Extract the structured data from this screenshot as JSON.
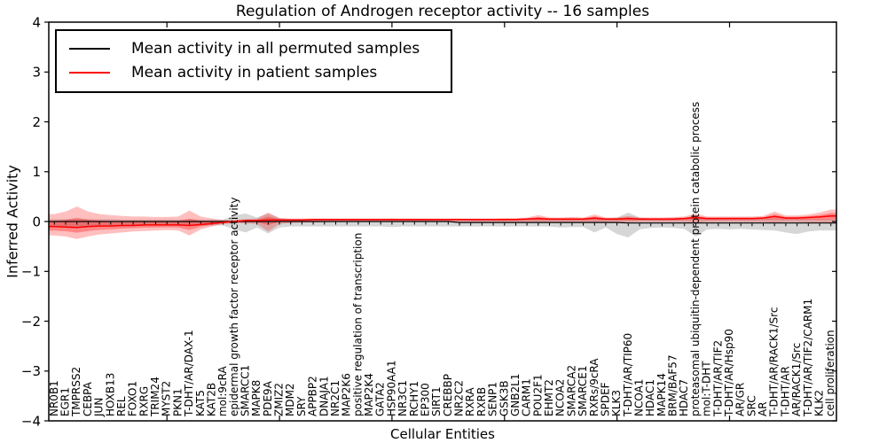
{
  "title": "Regulation of Androgen receptor activity -- 16 samples",
  "axes": {
    "xlabel": "Cellular Entities",
    "ylabel": "Inferred Activity",
    "ylim": [
      -4,
      4
    ],
    "ytick_values": [
      4,
      3,
      2,
      1,
      0,
      -1,
      -2,
      -3,
      -4
    ],
    "ytick_labels": [
      "4",
      "3",
      "2",
      "1",
      "0",
      "−1",
      "−2",
      "−3",
      "−4"
    ]
  },
  "legend": {
    "items": [
      {
        "label": "Mean activity in all permuted samples",
        "color": "#000000"
      },
      {
        "label": "Mean activity in patient samples",
        "color": "#ff0000"
      }
    ]
  },
  "chart_data": {
    "type": "line",
    "title": "Regulation of Androgen receptor activity -- 16 samples",
    "xlabel": "Cellular Entities",
    "ylabel": "Inferred Activity",
    "ylim": [
      -4,
      4
    ],
    "grid": false,
    "legend_position": "upper left",
    "categories": [
      "NR0B1",
      "EGR1",
      "TMPRSS2",
      "CEBPA",
      "JUN",
      "HOXB13",
      "REL",
      "FOXO1",
      "RXRG",
      "TRIM24",
      "MYST2",
      "PKN1",
      "T-DHT/AR/DAX-1",
      "KAT5",
      "KAT2B",
      "mol:9cRA",
      "epidermal growth factor receptor activity",
      "SMARCC1",
      "MAPK8",
      "PDE9A",
      "ZMIZ2",
      "MDM2",
      "SRY",
      "APPBP2",
      "DNAJA1",
      "NR2C1",
      "MAP2K6",
      "positive regulation of transcription",
      "MAP2K4",
      "GATA2",
      "HSP90AA1",
      "NR3C1",
      "RCHY1",
      "EP300",
      "SIRT1",
      "CREBBP",
      "NR2C2",
      "RXRA",
      "RXRB",
      "SENP1",
      "GSK3B",
      "GNB2L1",
      "CARM1",
      "POU2F1",
      "EHMT2",
      "NCOA2",
      "SMARCA2",
      "SMARCE1",
      "RXRs/9cRA",
      "SPDEF",
      "KLK3",
      "T-DHT/AR/TIP60",
      "NCOA1",
      "HDAC1",
      "MAPK14",
      "BRM/BAF57",
      "HDAC7",
      "proteasomal ubiquitin-dependent protein catabolic process",
      "mol:T-DHT",
      "T-DHT/AR/TIF2",
      "T-DHT/AR/Hsp90",
      "AR/GR",
      "SRC",
      "AR",
      "T-DHT/AR/RACK1/Src",
      "T-DHT/AR",
      "AR/RACK1/Src",
      "T-DHT/AR/TIF2/CARM1",
      "KLK2",
      "cell proliferation"
    ],
    "series": [
      {
        "name": "Mean activity in all permuted samples",
        "color": "#000000",
        "values": [
          0,
          0,
          0,
          0,
          0,
          0,
          0,
          0,
          0,
          0,
          0,
          0,
          0,
          0,
          0,
          0,
          0,
          0,
          0,
          0,
          0,
          0,
          0,
          0,
          0,
          0,
          0,
          0,
          0,
          0,
          0,
          0,
          0,
          0,
          0,
          0,
          -0.02,
          -0.02,
          -0.02,
          -0.02,
          -0.02,
          -0.02,
          -0.02,
          -0.02,
          -0.02,
          -0.02,
          -0.02,
          -0.02,
          -0.02,
          -0.02,
          -0.02,
          -0.03,
          -0.03,
          -0.03,
          -0.03,
          -0.03,
          -0.03,
          -0.03,
          -0.03,
          -0.03,
          -0.03,
          -0.03,
          -0.03,
          -0.03,
          -0.03,
          -0.03,
          -0.03,
          -0.03,
          -0.03,
          -0.03
        ]
      },
      {
        "name": "Mean activity in patient samples",
        "color": "#ff0000",
        "values": [
          -0.1,
          -0.11,
          -0.12,
          -0.1,
          -0.09,
          -0.09,
          -0.08,
          -0.08,
          -0.07,
          -0.07,
          -0.07,
          -0.07,
          -0.08,
          -0.06,
          -0.04,
          -0.02,
          0.0,
          0.02,
          0.02,
          0.03,
          0.03,
          0.03,
          0.03,
          0.04,
          0.04,
          0.04,
          0.04,
          0.04,
          0.04,
          0.04,
          0.04,
          0.04,
          0.04,
          0.04,
          0.04,
          0.04,
          0.04,
          0.04,
          0.04,
          0.04,
          0.04,
          0.04,
          0.05,
          0.06,
          0.05,
          0.05,
          0.05,
          0.05,
          0.07,
          0.05,
          0.05,
          0.06,
          0.05,
          0.05,
          0.05,
          0.05,
          0.06,
          0.08,
          0.06,
          0.06,
          0.06,
          0.06,
          0.06,
          0.07,
          0.1,
          0.07,
          0.07,
          0.08,
          0.09,
          0.11
        ]
      }
    ],
    "bands": [
      {
        "name": "permuted-samples-range",
        "color": "rgba(0,0,0,0.16)",
        "upper": [
          0.05,
          0.05,
          0.06,
          0.05,
          0.05,
          0.05,
          0.04,
          0.04,
          0.04,
          0.04,
          0.04,
          0.04,
          0.05,
          0.04,
          0.04,
          0.04,
          0.12,
          0.16,
          0.08,
          0.16,
          0.07,
          0.05,
          0.05,
          0.05,
          0.05,
          0.05,
          0.05,
          0.05,
          0.05,
          0.05,
          0.06,
          0.05,
          0.05,
          0.05,
          0.05,
          0.05,
          0.05,
          0.05,
          0.05,
          0.05,
          0.05,
          0.05,
          0.05,
          0.05,
          0.05,
          0.05,
          0.06,
          0.06,
          0.07,
          0.06,
          0.08,
          0.18,
          0.08,
          0.06,
          0.06,
          0.06,
          0.07,
          0.1,
          0.06,
          0.05,
          0.05,
          0.05,
          0.05,
          0.05,
          0.06,
          0.05,
          0.05,
          0.05,
          0.05,
          0.05
        ],
        "lower": [
          -0.1,
          -0.1,
          -0.12,
          -0.1,
          -0.09,
          -0.08,
          -0.08,
          -0.08,
          -0.08,
          -0.08,
          -0.08,
          -0.08,
          -0.09,
          -0.08,
          -0.08,
          -0.08,
          -0.16,
          -0.22,
          -0.12,
          -0.24,
          -0.12,
          -0.1,
          -0.1,
          -0.1,
          -0.1,
          -0.1,
          -0.1,
          -0.1,
          -0.1,
          -0.1,
          -0.11,
          -0.1,
          -0.1,
          -0.1,
          -0.1,
          -0.1,
          -0.1,
          -0.1,
          -0.1,
          -0.1,
          -0.1,
          -0.1,
          -0.1,
          -0.1,
          -0.1,
          -0.12,
          -0.11,
          -0.11,
          -0.22,
          -0.12,
          -0.25,
          -0.32,
          -0.16,
          -0.13,
          -0.12,
          -0.13,
          -0.15,
          -0.3,
          -0.16,
          -0.15,
          -0.16,
          -0.15,
          -0.16,
          -0.17,
          -0.18,
          -0.22,
          -0.25,
          -0.2,
          -0.18,
          -0.18
        ]
      },
      {
        "name": "patient-samples-range",
        "color": "rgba(255,0,0,0.25)",
        "upper": [
          0.15,
          0.2,
          0.3,
          0.2,
          0.15,
          0.13,
          0.11,
          0.1,
          0.1,
          0.09,
          0.09,
          0.1,
          0.22,
          0.1,
          0.06,
          0.03,
          0.03,
          0.05,
          0.06,
          0.18,
          0.07,
          0.06,
          0.06,
          0.06,
          0.06,
          0.06,
          0.06,
          0.06,
          0.06,
          0.06,
          0.06,
          0.06,
          0.06,
          0.06,
          0.06,
          0.06,
          0.06,
          0.06,
          0.06,
          0.06,
          0.07,
          0.07,
          0.08,
          0.13,
          0.08,
          0.08,
          0.09,
          0.08,
          0.14,
          0.08,
          0.08,
          0.11,
          0.08,
          0.08,
          0.08,
          0.09,
          0.1,
          0.16,
          0.1,
          0.1,
          0.1,
          0.1,
          0.1,
          0.11,
          0.2,
          0.12,
          0.12,
          0.14,
          0.18,
          0.24
        ],
        "lower": [
          -0.28,
          -0.3,
          -0.35,
          -0.3,
          -0.26,
          -0.24,
          -0.22,
          -0.2,
          -0.19,
          -0.18,
          -0.17,
          -0.18,
          -0.28,
          -0.16,
          -0.1,
          -0.05,
          -0.03,
          -0.04,
          -0.05,
          -0.2,
          -0.05,
          -0.03,
          -0.02,
          -0.02,
          -0.01,
          -0.01,
          -0.01,
          -0.01,
          -0.01,
          -0.01,
          -0.01,
          -0.01,
          -0.01,
          -0.01,
          -0.01,
          -0.01,
          -0.01,
          -0.01,
          -0.01,
          -0.01,
          -0.01,
          -0.01,
          -0.01,
          -0.02,
          -0.01,
          -0.01,
          -0.01,
          -0.01,
          -0.03,
          -0.01,
          -0.01,
          -0.02,
          -0.01,
          -0.01,
          -0.01,
          -0.01,
          -0.01,
          -0.03,
          -0.01,
          -0.01,
          -0.01,
          -0.01,
          -0.01,
          -0.01,
          -0.03,
          -0.01,
          -0.01,
          -0.02,
          -0.03,
          -0.04
        ]
      }
    ]
  }
}
